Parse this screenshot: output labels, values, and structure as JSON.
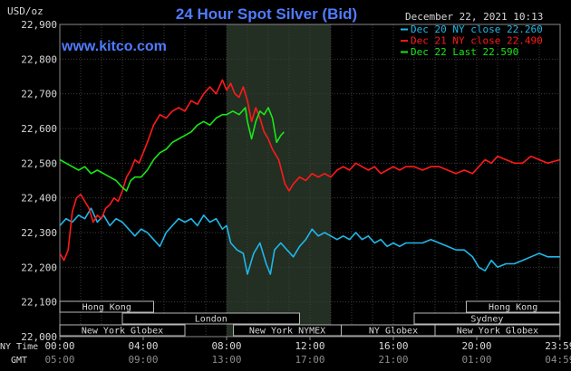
{
  "chart_data": {
    "type": "line",
    "title": "24 Hour Spot Silver (Bid)",
    "watermark": "www.kitco.com",
    "date_label": "December 22, 2021 10:13",
    "ylabel": "USD/oz",
    "ylim": [
      22.0,
      22.9
    ],
    "y_ticks": [
      "22,000",
      "22,100",
      "22,200",
      "22,300",
      "22,400",
      "22,500",
      "22,600",
      "22,700",
      "22,800",
      "22,900"
    ],
    "x_axis_label_ny": "NY Time",
    "x_axis_label_gmt": "GMT",
    "x_ticks_ny": [
      "00:00",
      "04:00",
      "08:00",
      "12:00",
      "16:00",
      "20:00",
      "23:59"
    ],
    "x_ticks_gmt": [
      "05:00",
      "09:00",
      "13:00",
      "17:00",
      "21:00",
      "01:00",
      "04:59"
    ],
    "grid": true,
    "legend_position": "top-right",
    "highlight_band_hours": [
      8.0,
      13.0
    ],
    "series": [
      {
        "name": "Dec 20 NY close 22.260",
        "color": "#1fb7e8",
        "points": [
          [
            0,
            22.32
          ],
          [
            0.3,
            22.34
          ],
          [
            0.6,
            22.33
          ],
          [
            0.9,
            22.35
          ],
          [
            1.2,
            22.34
          ],
          [
            1.5,
            22.37
          ],
          [
            1.8,
            22.33
          ],
          [
            2.1,
            22.35
          ],
          [
            2.4,
            22.32
          ],
          [
            2.7,
            22.34
          ],
          [
            3.0,
            22.33
          ],
          [
            3.3,
            22.31
          ],
          [
            3.6,
            22.29
          ],
          [
            3.9,
            22.31
          ],
          [
            4.2,
            22.3
          ],
          [
            4.5,
            22.28
          ],
          [
            4.8,
            22.26
          ],
          [
            5.1,
            22.3
          ],
          [
            5.4,
            22.32
          ],
          [
            5.7,
            22.34
          ],
          [
            6.0,
            22.33
          ],
          [
            6.3,
            22.34
          ],
          [
            6.6,
            22.32
          ],
          [
            6.9,
            22.35
          ],
          [
            7.2,
            22.33
          ],
          [
            7.5,
            22.34
          ],
          [
            7.8,
            22.31
          ],
          [
            8.0,
            22.32
          ],
          [
            8.2,
            22.27
          ],
          [
            8.5,
            22.25
          ],
          [
            8.8,
            22.24
          ],
          [
            9.0,
            22.18
          ],
          [
            9.3,
            22.24
          ],
          [
            9.6,
            22.27
          ],
          [
            9.9,
            22.21
          ],
          [
            10.1,
            22.18
          ],
          [
            10.3,
            22.25
          ],
          [
            10.6,
            22.27
          ],
          [
            10.9,
            22.25
          ],
          [
            11.2,
            22.23
          ],
          [
            11.5,
            22.26
          ],
          [
            11.8,
            22.28
          ],
          [
            12.1,
            22.31
          ],
          [
            12.4,
            22.29
          ],
          [
            12.7,
            22.3
          ],
          [
            13.0,
            22.29
          ],
          [
            13.3,
            22.28
          ],
          [
            13.6,
            22.29
          ],
          [
            13.9,
            22.28
          ],
          [
            14.2,
            22.3
          ],
          [
            14.5,
            22.28
          ],
          [
            14.8,
            22.29
          ],
          [
            15.1,
            22.27
          ],
          [
            15.4,
            22.28
          ],
          [
            15.7,
            22.26
          ],
          [
            16.0,
            22.27
          ],
          [
            16.3,
            22.26
          ],
          [
            16.6,
            22.27
          ],
          [
            17.0,
            22.27
          ],
          [
            17.4,
            22.27
          ],
          [
            17.8,
            22.28
          ],
          [
            18.2,
            22.27
          ],
          [
            18.6,
            22.26
          ],
          [
            19.0,
            22.25
          ],
          [
            19.4,
            22.25
          ],
          [
            19.8,
            22.23
          ],
          [
            20.1,
            22.2
          ],
          [
            20.4,
            22.19
          ],
          [
            20.7,
            22.22
          ],
          [
            21.0,
            22.2
          ],
          [
            21.4,
            22.21
          ],
          [
            21.8,
            22.21
          ],
          [
            22.2,
            22.22
          ],
          [
            22.6,
            22.23
          ],
          [
            23.0,
            22.24
          ],
          [
            23.4,
            22.23
          ],
          [
            23.99,
            22.23
          ]
        ]
      },
      {
        "name": "Dec 21 NY close 22.490",
        "color": "#ff1a1a",
        "points": [
          [
            0,
            22.24
          ],
          [
            0.2,
            22.22
          ],
          [
            0.4,
            22.25
          ],
          [
            0.6,
            22.36
          ],
          [
            0.8,
            22.4
          ],
          [
            1.0,
            22.41
          ],
          [
            1.2,
            22.39
          ],
          [
            1.4,
            22.37
          ],
          [
            1.6,
            22.33
          ],
          [
            1.8,
            22.35
          ],
          [
            2.0,
            22.34
          ],
          [
            2.2,
            22.37
          ],
          [
            2.4,
            22.38
          ],
          [
            2.6,
            22.4
          ],
          [
            2.8,
            22.39
          ],
          [
            3.0,
            22.42
          ],
          [
            3.2,
            22.46
          ],
          [
            3.4,
            22.48
          ],
          [
            3.6,
            22.51
          ],
          [
            3.8,
            22.5
          ],
          [
            4.0,
            22.53
          ],
          [
            4.2,
            22.56
          ],
          [
            4.5,
            22.61
          ],
          [
            4.8,
            22.64
          ],
          [
            5.1,
            22.63
          ],
          [
            5.4,
            22.65
          ],
          [
            5.7,
            22.66
          ],
          [
            6.0,
            22.65
          ],
          [
            6.3,
            22.68
          ],
          [
            6.6,
            22.67
          ],
          [
            6.9,
            22.7
          ],
          [
            7.2,
            22.72
          ],
          [
            7.5,
            22.7
          ],
          [
            7.8,
            22.74
          ],
          [
            8.0,
            22.71
          ],
          [
            8.2,
            22.73
          ],
          [
            8.4,
            22.7
          ],
          [
            8.6,
            22.69
          ],
          [
            8.8,
            22.72
          ],
          [
            9.0,
            22.68
          ],
          [
            9.2,
            22.62
          ],
          [
            9.4,
            22.66
          ],
          [
            9.6,
            22.63
          ],
          [
            9.8,
            22.59
          ],
          [
            10.0,
            22.57
          ],
          [
            10.2,
            22.54
          ],
          [
            10.5,
            22.51
          ],
          [
            10.8,
            22.44
          ],
          [
            11.0,
            22.42
          ],
          [
            11.2,
            22.44
          ],
          [
            11.5,
            22.46
          ],
          [
            11.8,
            22.45
          ],
          [
            12.1,
            22.47
          ],
          [
            12.4,
            22.46
          ],
          [
            12.7,
            22.47
          ],
          [
            13.0,
            22.46
          ],
          [
            13.3,
            22.48
          ],
          [
            13.6,
            22.49
          ],
          [
            13.9,
            22.48
          ],
          [
            14.2,
            22.5
          ],
          [
            14.5,
            22.49
          ],
          [
            14.8,
            22.48
          ],
          [
            15.1,
            22.49
          ],
          [
            15.4,
            22.47
          ],
          [
            15.7,
            22.48
          ],
          [
            16.0,
            22.49
          ],
          [
            16.3,
            22.48
          ],
          [
            16.6,
            22.49
          ],
          [
            17.0,
            22.49
          ],
          [
            17.4,
            22.48
          ],
          [
            17.8,
            22.49
          ],
          [
            18.2,
            22.49
          ],
          [
            18.6,
            22.48
          ],
          [
            19.0,
            22.47
          ],
          [
            19.4,
            22.48
          ],
          [
            19.8,
            22.47
          ],
          [
            20.1,
            22.49
          ],
          [
            20.4,
            22.51
          ],
          [
            20.7,
            22.5
          ],
          [
            21.0,
            22.52
          ],
          [
            21.4,
            22.51
          ],
          [
            21.8,
            22.5
          ],
          [
            22.2,
            22.5
          ],
          [
            22.6,
            22.52
          ],
          [
            23.0,
            22.51
          ],
          [
            23.4,
            22.5
          ],
          [
            23.99,
            22.51
          ]
        ]
      },
      {
        "name": "Dec 22 Last 22.590",
        "color": "#18e818",
        "points": [
          [
            0,
            22.51
          ],
          [
            0.3,
            22.5
          ],
          [
            0.6,
            22.49
          ],
          [
            0.9,
            22.48
          ],
          [
            1.2,
            22.49
          ],
          [
            1.5,
            22.47
          ],
          [
            1.8,
            22.48
          ],
          [
            2.1,
            22.47
          ],
          [
            2.4,
            22.46
          ],
          [
            2.7,
            22.45
          ],
          [
            3.0,
            22.43
          ],
          [
            3.2,
            22.42
          ],
          [
            3.4,
            22.45
          ],
          [
            3.6,
            22.46
          ],
          [
            3.9,
            22.46
          ],
          [
            4.2,
            22.48
          ],
          [
            4.5,
            22.51
          ],
          [
            4.8,
            22.53
          ],
          [
            5.1,
            22.54
          ],
          [
            5.4,
            22.56
          ],
          [
            5.7,
            22.57
          ],
          [
            6.0,
            22.58
          ],
          [
            6.3,
            22.59
          ],
          [
            6.6,
            22.61
          ],
          [
            6.9,
            22.62
          ],
          [
            7.2,
            22.61
          ],
          [
            7.5,
            22.63
          ],
          [
            7.8,
            22.64
          ],
          [
            8.0,
            22.64
          ],
          [
            8.3,
            22.65
          ],
          [
            8.6,
            22.64
          ],
          [
            8.9,
            22.66
          ],
          [
            9.0,
            22.62
          ],
          [
            9.2,
            22.57
          ],
          [
            9.4,
            22.62
          ],
          [
            9.6,
            22.65
          ],
          [
            9.8,
            22.64
          ],
          [
            10.0,
            22.66
          ],
          [
            10.2,
            22.63
          ],
          [
            10.4,
            22.56
          ],
          [
            10.6,
            22.58
          ],
          [
            10.75,
            22.59
          ]
        ]
      }
    ],
    "market_sessions": [
      {
        "name": "Hong Kong",
        "start_hour": 0.0,
        "end_hour": 4.5,
        "row": 1
      },
      {
        "name": "London",
        "start_hour": 3.0,
        "end_hour": 11.5,
        "row": 2
      },
      {
        "name": "New York Globex",
        "start_hour": 0.0,
        "end_hour": 6.0,
        "row": 3
      },
      {
        "name": "New York NYMEX",
        "start_hour": 8.33,
        "end_hour": 13.5,
        "row": 3
      },
      {
        "name": "NY Globex",
        "start_hour": 13.5,
        "end_hour": 18.5,
        "row": 3
      },
      {
        "name": "Hong Kong",
        "start_hour": 19.5,
        "end_hour": 23.99,
        "row": 1
      },
      {
        "name": "Sydney",
        "start_hour": 17.0,
        "end_hour": 23.99,
        "row": 2
      },
      {
        "name": "New York Globex",
        "start_hour": 18.0,
        "end_hour": 23.99,
        "row": 3
      }
    ]
  }
}
